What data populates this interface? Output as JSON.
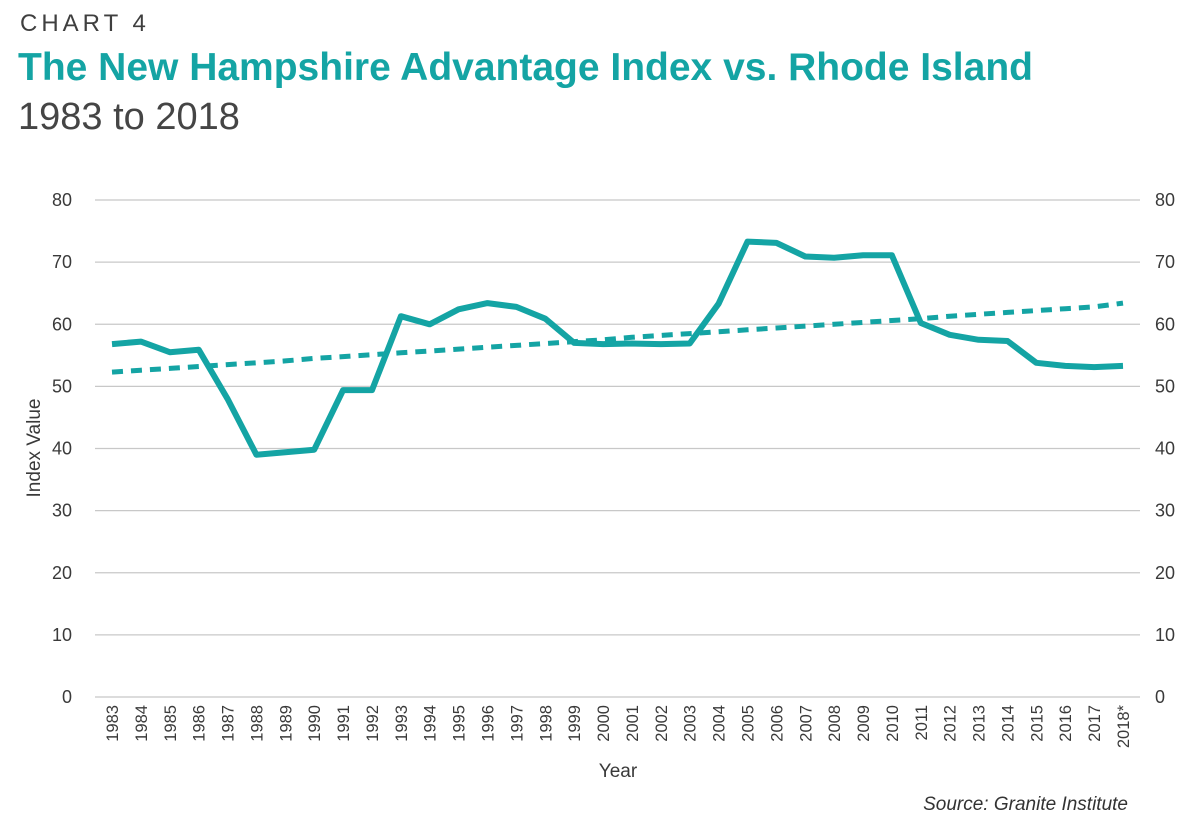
{
  "header": {
    "eyebrow": "CHART 4",
    "title": "The New Hampshire Advantage Index vs. Rhode Island",
    "subtitle": "1983 to 2018"
  },
  "source": "Source: Granite Institute",
  "colors": {
    "accent": "#14a4a4",
    "grid": "#c8c8c8",
    "text": "#3a3a3a"
  },
  "chart_data": {
    "type": "line",
    "xlabel": "Year",
    "ylabel": "Index Value",
    "ylim": [
      0,
      80
    ],
    "yticks": [
      0,
      10,
      20,
      30,
      40,
      50,
      60,
      70,
      80
    ],
    "grid": true,
    "secondary_y_axis": true,
    "categories": [
      "1983",
      "1984",
      "1985",
      "1986",
      "1987",
      "1988",
      "1989",
      "1990",
      "1991",
      "1992",
      "1993",
      "1994",
      "1995",
      "1996",
      "1997",
      "1998",
      "1999",
      "2000",
      "2001",
      "2002",
      "2003",
      "2004",
      "2005",
      "2006",
      "2007",
      "2008",
      "2009",
      "2010",
      "2011",
      "2012",
      "2013",
      "2014",
      "2015",
      "2016",
      "2017",
      "2018*"
    ],
    "series": [
      {
        "style": "solid",
        "values": [
          56.8,
          57.2,
          55.5,
          55.9,
          48.0,
          39.0,
          39.4,
          39.8,
          49.4,
          49.4,
          61.3,
          60.0,
          62.4,
          63.4,
          62.8,
          60.9,
          57.0,
          56.8,
          56.9,
          56.8,
          56.9,
          63.3,
          73.3,
          73.1,
          70.9,
          70.7,
          71.1,
          71.1,
          60.2,
          58.3,
          57.5,
          57.3,
          53.8,
          53.3,
          53.1,
          53.3
        ]
      },
      {
        "style": "dashed",
        "trendline": true,
        "values": [
          52.3,
          52.6,
          52.9,
          53.2,
          53.5,
          53.8,
          54.1,
          54.5,
          54.8,
          55.1,
          55.4,
          55.7,
          56.0,
          56.3,
          56.6,
          56.9,
          57.2,
          57.5,
          57.9,
          58.2,
          58.5,
          58.8,
          59.1,
          59.4,
          59.7,
          60.0,
          60.3,
          60.6,
          60.9,
          61.3,
          61.6,
          61.9,
          62.2,
          62.5,
          62.8,
          63.4
        ]
      }
    ]
  }
}
